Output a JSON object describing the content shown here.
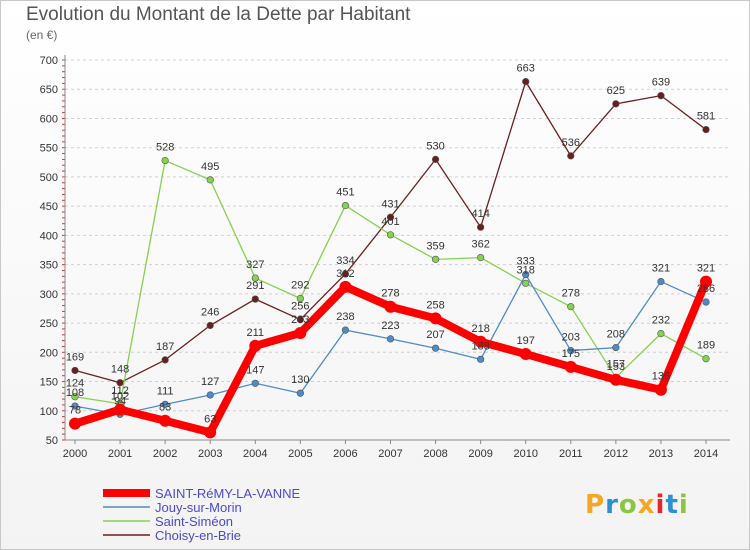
{
  "header": {
    "title": "Evolution du Montant de la Dette par Habitant",
    "unit": "(en €)"
  },
  "logo": {
    "text": "Proxiti",
    "colors": [
      "#f5a623",
      "#2a8fd4",
      "#8cc63f",
      "#f5a623",
      "#e4262a",
      "#2a8fd4",
      "#8cc63f"
    ]
  },
  "chart_data": {
    "type": "line",
    "title": "Evolution du Montant de la Dette par Habitant",
    "ylabel": "(en €)",
    "xlabel": "",
    "ylim": [
      50,
      700
    ],
    "yticks": [
      50,
      100,
      150,
      200,
      250,
      300,
      350,
      400,
      450,
      500,
      550,
      600,
      650,
      700
    ],
    "x": [
      "2000",
      "2001",
      "2002",
      "2003",
      "2004",
      "2005",
      "2006",
      "2007",
      "2008",
      "2009",
      "2010",
      "2011",
      "2012",
      "2013",
      "2014"
    ],
    "grid": "horizontal dashed",
    "legend_position": "bottom-left",
    "series": [
      {
        "name": "SAINT-RéMY-LA-VANNE",
        "color": "#ff0000",
        "values": [
          78,
          102,
          83,
          63,
          211,
          233,
          312,
          278,
          258,
          218,
          197,
          175,
          153,
          136,
          321
        ]
      },
      {
        "name": "Jouy-sur-Morin",
        "color": "#4f8ac9",
        "values": [
          108,
          94,
          111,
          127,
          147,
          130,
          238,
          223,
          207,
          188,
          333,
          203,
          208,
          321,
          286
        ]
      },
      {
        "name": "Saint-Siméon",
        "color": "#86d14f",
        "values": [
          124,
          112,
          528,
          495,
          327,
          292,
          451,
          401,
          359,
          362,
          318,
          278,
          157,
          232,
          189
        ]
      },
      {
        "name": "Choisy-en-Brie",
        "color": "#6b1e1e",
        "values": [
          169,
          148,
          187,
          246,
          291,
          256,
          334,
          431,
          530,
          414,
          663,
          536,
          625,
          639,
          581
        ]
      }
    ]
  }
}
